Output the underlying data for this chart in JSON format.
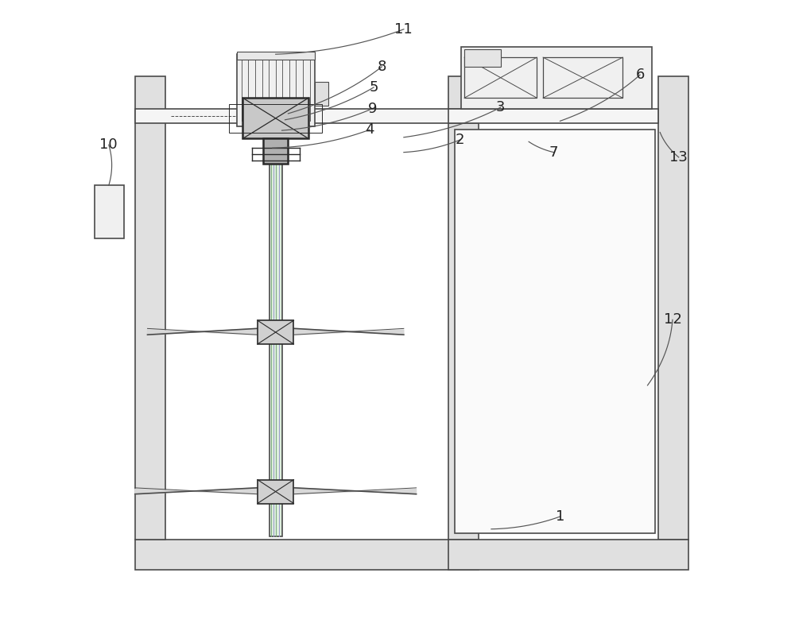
{
  "bg_color": "#ffffff",
  "line_color": "#4a4a4a",
  "dark_color": "#2a2a2a",
  "label_color": "#222222",
  "figsize": [
    10.0,
    7.89
  ],
  "dpi": 100
}
